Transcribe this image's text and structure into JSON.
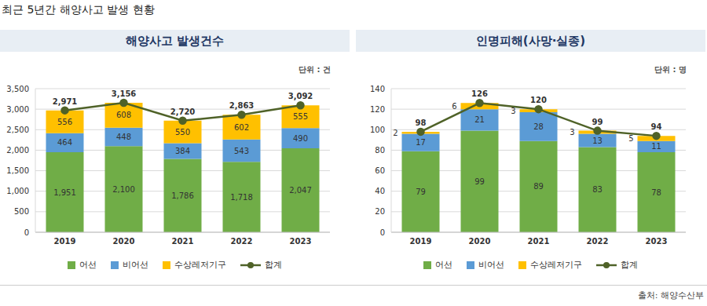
{
  "title": "최근 5년간 해양사고 발생 현황",
  "source": "출처: 해양수산부",
  "chart_data": [
    {
      "type": "bar",
      "title": "해양사고 발생건수",
      "annotations": [
        "단위 : 건"
      ],
      "categories": [
        "2019",
        "2020",
        "2021",
        "2022",
        "2023"
      ],
      "stacked": true,
      "data_labels": true,
      "grid": true,
      "legend": "bottom",
      "ylim": [
        0,
        3500
      ],
      "yticks": [
        0,
        500,
        {
          "value": 1000,
          "label": "1,000"
        },
        {
          "value": 1500,
          "label": "1,500"
        },
        {
          "value": 2000,
          "label": "2,000"
        },
        {
          "value": 2500,
          "label": "2,500"
        },
        {
          "value": 3000,
          "label": "3,000"
        },
        {
          "value": 3500,
          "label": "3,500"
        }
      ],
      "series": [
        {
          "name": "어선",
          "type": "bar",
          "color": "#70ad47",
          "values": [
            1951,
            2100,
            1786,
            1718,
            2047
          ],
          "value_labels": [
            "1,951",
            "2,100",
            "1,786",
            "1,718",
            "2,047"
          ]
        },
        {
          "name": "비어선",
          "type": "bar",
          "color": "#5b9bd5",
          "values": [
            464,
            448,
            384,
            543,
            490
          ]
        },
        {
          "name": "수상레저기구",
          "type": "bar",
          "color": "#ffc000",
          "values": [
            556,
            608,
            550,
            602,
            555
          ]
        },
        {
          "name": "합계",
          "type": "line",
          "color": "#4f6228",
          "marker": "circle",
          "values": [
            2971,
            3156,
            2720,
            2863,
            3092
          ],
          "value_labels": [
            "2,971",
            "3,156",
            "2,720",
            "2,863",
            "3,092"
          ]
        }
      ]
    },
    {
      "type": "bar",
      "title": "인명피해(사망·실종)",
      "annotations": [
        "단위 : 명"
      ],
      "categories": [
        "2019",
        "2020",
        "2021",
        "2022",
        "2023"
      ],
      "stacked": true,
      "data_labels": true,
      "grid": true,
      "legend": "bottom",
      "ylim": [
        0,
        140
      ],
      "yticks": [
        0,
        20,
        40,
        60,
        80,
        100,
        120,
        140
      ],
      "series": [
        {
          "name": "어선",
          "type": "bar",
          "color": "#70ad47",
          "values": [
            79,
            99,
            89,
            83,
            78
          ]
        },
        {
          "name": "비어선",
          "type": "bar",
          "color": "#5b9bd5",
          "values": [
            17,
            21,
            28,
            13,
            11
          ]
        },
        {
          "name": "수상레저기구",
          "type": "bar",
          "color": "#ffc000",
          "values": [
            2,
            6,
            3,
            3,
            5
          ]
        },
        {
          "name": "합계",
          "type": "line",
          "color": "#4f6228",
          "marker": "circle",
          "values": [
            98,
            126,
            120,
            99,
            94
          ]
        }
      ]
    }
  ]
}
